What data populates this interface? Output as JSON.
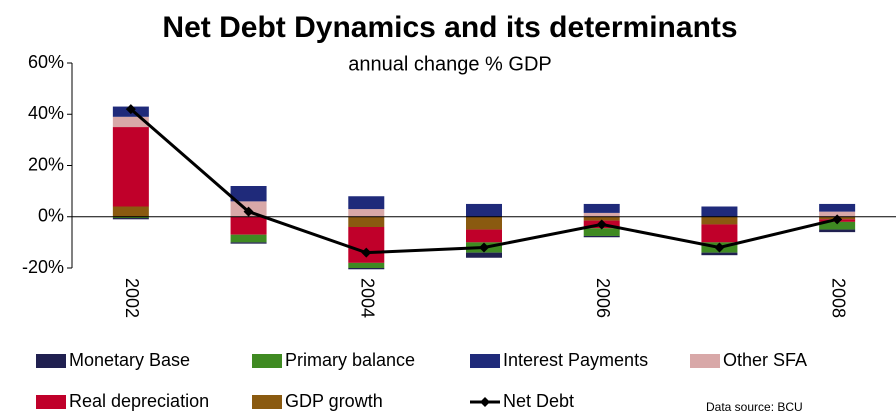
{
  "chart_data": {
    "type": "bar",
    "stacked": true,
    "title": "Net Debt Dynamics and its determinants",
    "subtitle": "annual change % GDP",
    "source": "Data source: BCU",
    "categories": [
      "2002",
      null,
      "2004",
      null,
      "2006",
      null,
      "2008"
    ],
    "ylim": [
      -20,
      60
    ],
    "yticks": [
      {
        "value": -20,
        "label": "-20%"
      },
      {
        "value": 0,
        "label": "0%"
      },
      {
        "value": 20,
        "label": "20%"
      },
      {
        "value": 40,
        "label": "40%"
      },
      {
        "value": 60,
        "label": "60%"
      }
    ],
    "series": [
      {
        "name": "Monetary Base",
        "color": "#202050",
        "values": [
          -0.5,
          -0.5,
          -0.5,
          -2,
          -0.5,
          -1,
          -1
        ]
      },
      {
        "name": "Primary balance",
        "color": "#3f8a22",
        "values": [
          -0.5,
          -3,
          -2,
          -4,
          -3,
          -4,
          -3
        ]
      },
      {
        "name": "Interest Payments",
        "color": "#1f2a7a",
        "values": [
          4,
          6,
          5,
          5,
          3.5,
          4,
          3
        ]
      },
      {
        "name": "Other SFA",
        "color": "#d8a8a8",
        "values": [
          4,
          6,
          3,
          0,
          1.5,
          0,
          2
        ]
      },
      {
        "name": "Real depreciation",
        "color": "#c0002a",
        "values": [
          31,
          -7,
          -14,
          -5,
          -3,
          -7,
          -1
        ]
      },
      {
        "name": "GDP growth",
        "color": "#8a5a10",
        "values": [
          4,
          0,
          -4,
          -5,
          -1.5,
          -3,
          -1
        ]
      },
      {
        "name": "Net Debt",
        "color": "#000000",
        "type": "line",
        "values": [
          42,
          2,
          -14,
          -12,
          -3,
          -12,
          -1
        ]
      }
    ]
  }
}
